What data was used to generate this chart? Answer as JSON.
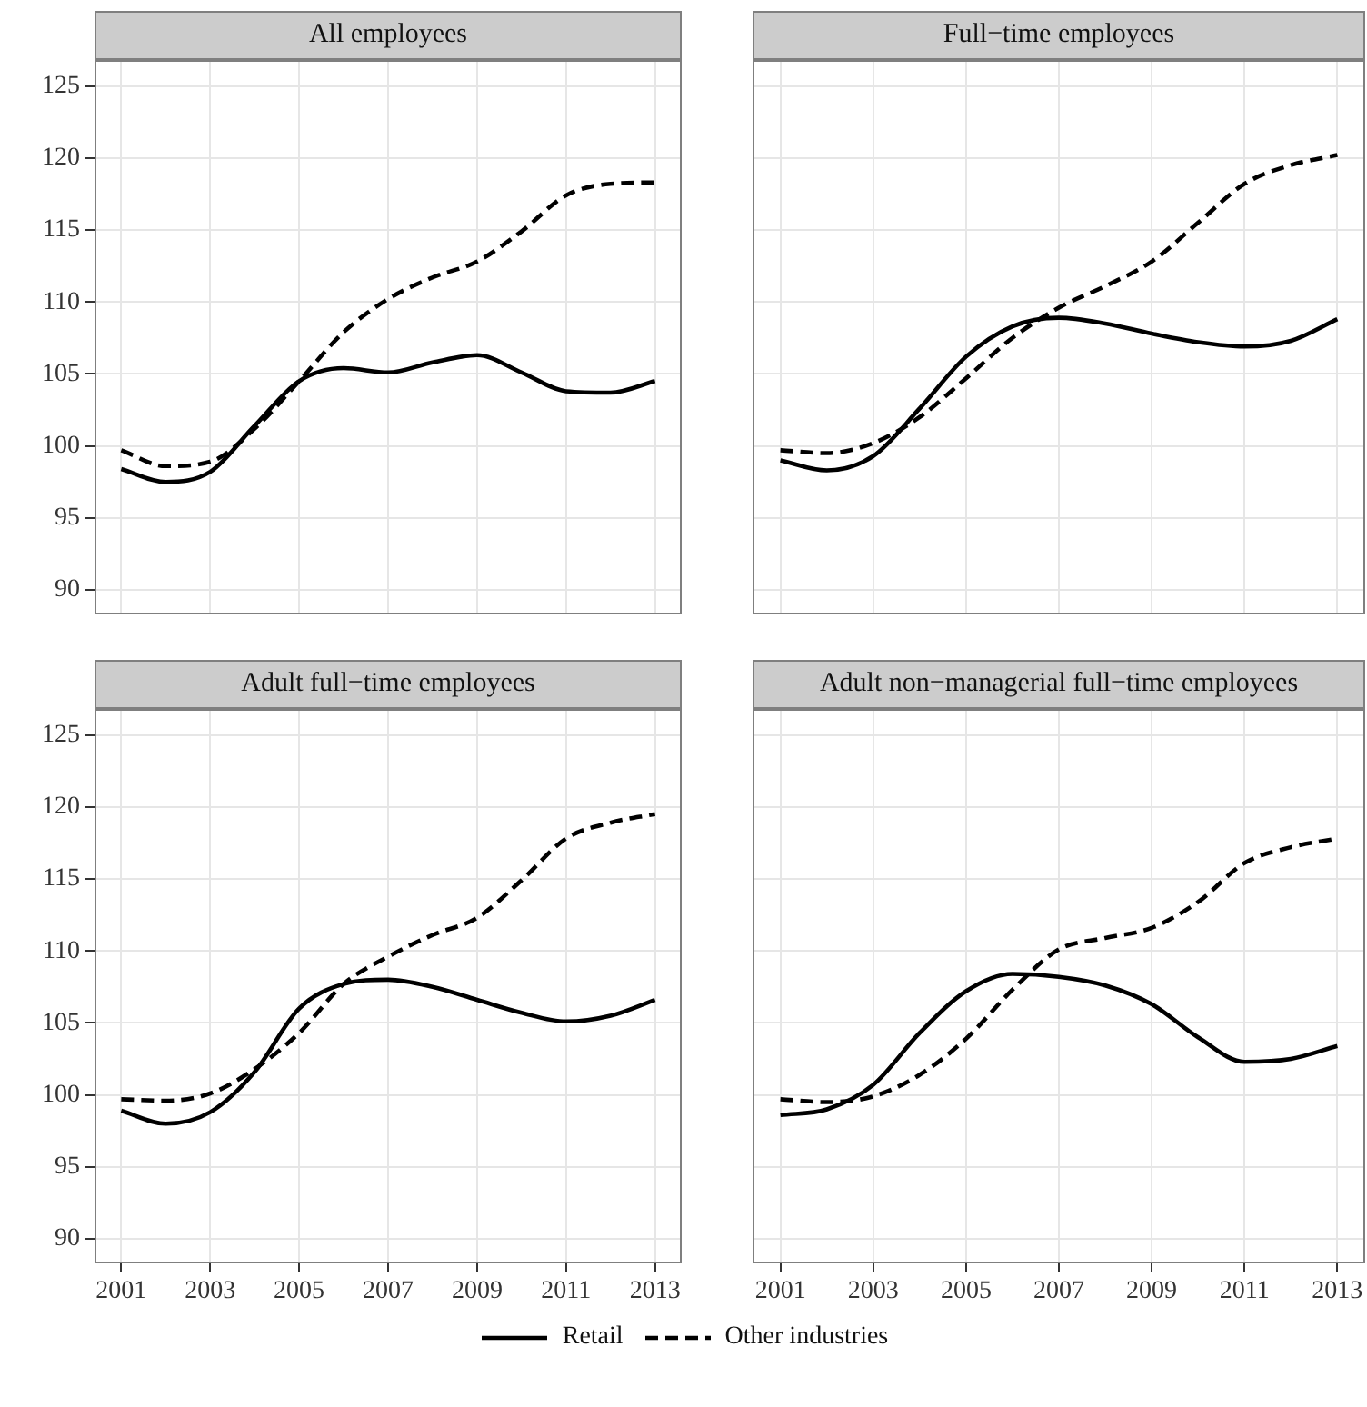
{
  "chart_data": [
    {
      "type": "line",
      "title": "All employees",
      "x": [
        2001,
        2002,
        2003,
        2004,
        2005,
        2006,
        2007,
        2008,
        2009,
        2010,
        2011,
        2012,
        2013
      ],
      "xlim": [
        2000.4,
        2013.6
      ],
      "xticks": [
        2001,
        2003,
        2005,
        2007,
        2009,
        2011,
        2013
      ],
      "ylim": [
        88.3,
        126.8
      ],
      "yticks": [
        90,
        95,
        100,
        105,
        110,
        115,
        120,
        125
      ],
      "grid": true,
      "tick_labels": "y",
      "marker": "none",
      "series": [
        {
          "color": "#000000",
          "line_style": "solid",
          "values": [
            98.4,
            97.5,
            98.2,
            101.4,
            104.5,
            105.4,
            105.1,
            105.8,
            106.3,
            105.1,
            103.8,
            103.7,
            104.5
          ]
        },
        {
          "color": "#000000",
          "line_style": "dashed",
          "values": [
            99.7,
            98.6,
            98.9,
            101.2,
            104.5,
            107.9,
            110.2,
            111.7,
            112.8,
            114.9,
            117.4,
            118.2,
            118.3
          ]
        }
      ]
    },
    {
      "type": "line",
      "title": "Full−time employees",
      "x": [
        2001,
        2002,
        2003,
        2004,
        2005,
        2006,
        2007,
        2008,
        2009,
        2010,
        2011,
        2012,
        2013
      ],
      "xlim": [
        2000.4,
        2013.6
      ],
      "xticks": [
        2001,
        2003,
        2005,
        2007,
        2009,
        2011,
        2013
      ],
      "ylim": [
        88.3,
        126.8
      ],
      "yticks": [
        90,
        95,
        100,
        105,
        110,
        115,
        120,
        125
      ],
      "grid": true,
      "tick_labels": false,
      "marker": "none",
      "series": [
        {
          "color": "#000000",
          "line_style": "solid",
          "values": [
            99.0,
            98.3,
            99.3,
            102.6,
            106.2,
            108.3,
            108.9,
            108.5,
            107.8,
            107.2,
            106.9,
            107.3,
            108.8
          ]
        },
        {
          "color": "#000000",
          "line_style": "dashed",
          "values": [
            99.7,
            99.5,
            100.2,
            102.0,
            104.7,
            107.5,
            109.6,
            111.1,
            112.8,
            115.5,
            118.2,
            119.5,
            120.2
          ]
        }
      ]
    },
    {
      "type": "line",
      "title": "Adult full−time employees",
      "x": [
        2001,
        2002,
        2003,
        2004,
        2005,
        2006,
        2007,
        2008,
        2009,
        2010,
        2011,
        2012,
        2013
      ],
      "xlim": [
        2000.4,
        2013.6
      ],
      "xticks": [
        2001,
        2003,
        2005,
        2007,
        2009,
        2011,
        2013
      ],
      "ylim": [
        88.3,
        126.8
      ],
      "yticks": [
        90,
        95,
        100,
        105,
        110,
        115,
        120,
        125
      ],
      "grid": true,
      "marker": "none",
      "series": [
        {
          "color": "#000000",
          "line_style": "solid",
          "values": [
            98.9,
            98.0,
            98.8,
            101.6,
            106.0,
            107.7,
            108.0,
            107.5,
            106.6,
            105.7,
            105.1,
            105.5,
            106.6
          ]
        },
        {
          "color": "#000000",
          "line_style": "dashed",
          "values": [
            99.7,
            99.6,
            100.1,
            101.8,
            104.3,
            107.7,
            109.6,
            111.1,
            112.3,
            114.9,
            117.8,
            118.9,
            119.5
          ]
        }
      ]
    },
    {
      "type": "line",
      "title": "Adult non−managerial full−time employees",
      "x": [
        2001,
        2002,
        2003,
        2004,
        2005,
        2006,
        2007,
        2008,
        2009,
        2010,
        2011,
        2012,
        2013
      ],
      "xlim": [
        2000.4,
        2013.6
      ],
      "xticks": [
        2001,
        2003,
        2005,
        2007,
        2009,
        2011,
        2013
      ],
      "ylim": [
        88.3,
        126.8
      ],
      "yticks": [
        90,
        95,
        100,
        105,
        110,
        115,
        120,
        125
      ],
      "grid": true,
      "tick_labels": "x",
      "marker": "none",
      "legend": "bottom",
      "series": [
        {
          "name": "Retail",
          "color": "#000000",
          "line_style": "solid",
          "values": [
            98.6,
            99.0,
            100.7,
            104.3,
            107.2,
            108.4,
            108.2,
            107.6,
            106.3,
            104.0,
            102.3,
            102.5,
            103.4
          ]
        },
        {
          "name": "Other industries",
          "color": "#000000",
          "line_style": "dashed",
          "values": [
            99.7,
            99.5,
            99.9,
            101.4,
            103.9,
            107.3,
            110.1,
            110.9,
            111.6,
            113.4,
            116.1,
            117.2,
            117.8
          ]
        }
      ]
    }
  ]
}
